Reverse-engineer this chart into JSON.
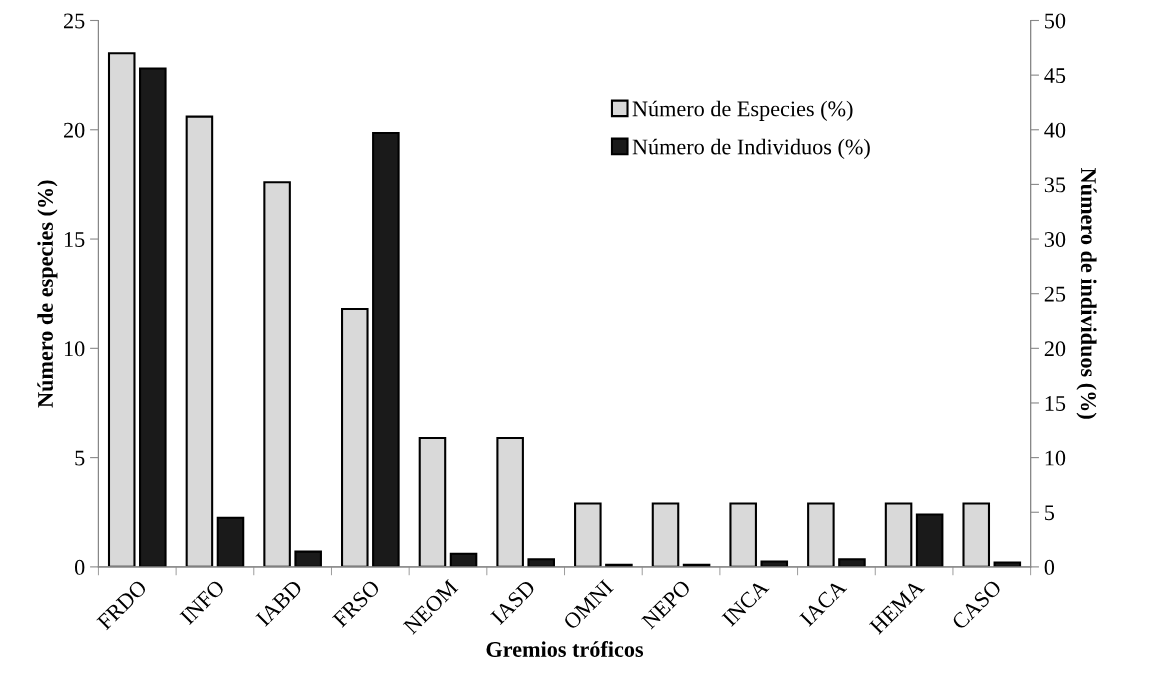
{
  "chart_data": {
    "type": "bar",
    "xlabel": "Gremios tróficos",
    "ylabel": "Número de especies (%)",
    "y2label": "Número de individuos (%)",
    "categories": [
      "FRDO",
      "INFO",
      "IABD",
      "FRSO",
      "NEOM",
      "IASD",
      "OMNI",
      "NEPO",
      "INCA",
      "IACA",
      "HEMA",
      "CASO"
    ],
    "series": [
      {
        "name": "Número de Especies (%)",
        "color": "#d9d9d9",
        "values": [
          23.5,
          20.6,
          17.6,
          11.8,
          5.9,
          5.9,
          2.9,
          2.9,
          2.9,
          2.9,
          2.9,
          2.9
        ]
      },
      {
        "name": "Número de Individuos (%)",
        "color": "#1a1a1a",
        "axis": "y2",
        "values": [
          45.6,
          4.5,
          1.4,
          39.7,
          1.2,
          0.7,
          0.2,
          0.2,
          0.5,
          0.7,
          4.8,
          0.4
        ]
      }
    ],
    "ylim": [
      0,
      25
    ],
    "yticks": [
      0,
      5,
      10,
      15,
      20,
      25
    ],
    "y2lim": [
      0,
      50
    ],
    "y2ticks": [
      0,
      5,
      10,
      15,
      20,
      25,
      30,
      35,
      40,
      45,
      50
    ],
    "legend": "right",
    "grid": false
  }
}
